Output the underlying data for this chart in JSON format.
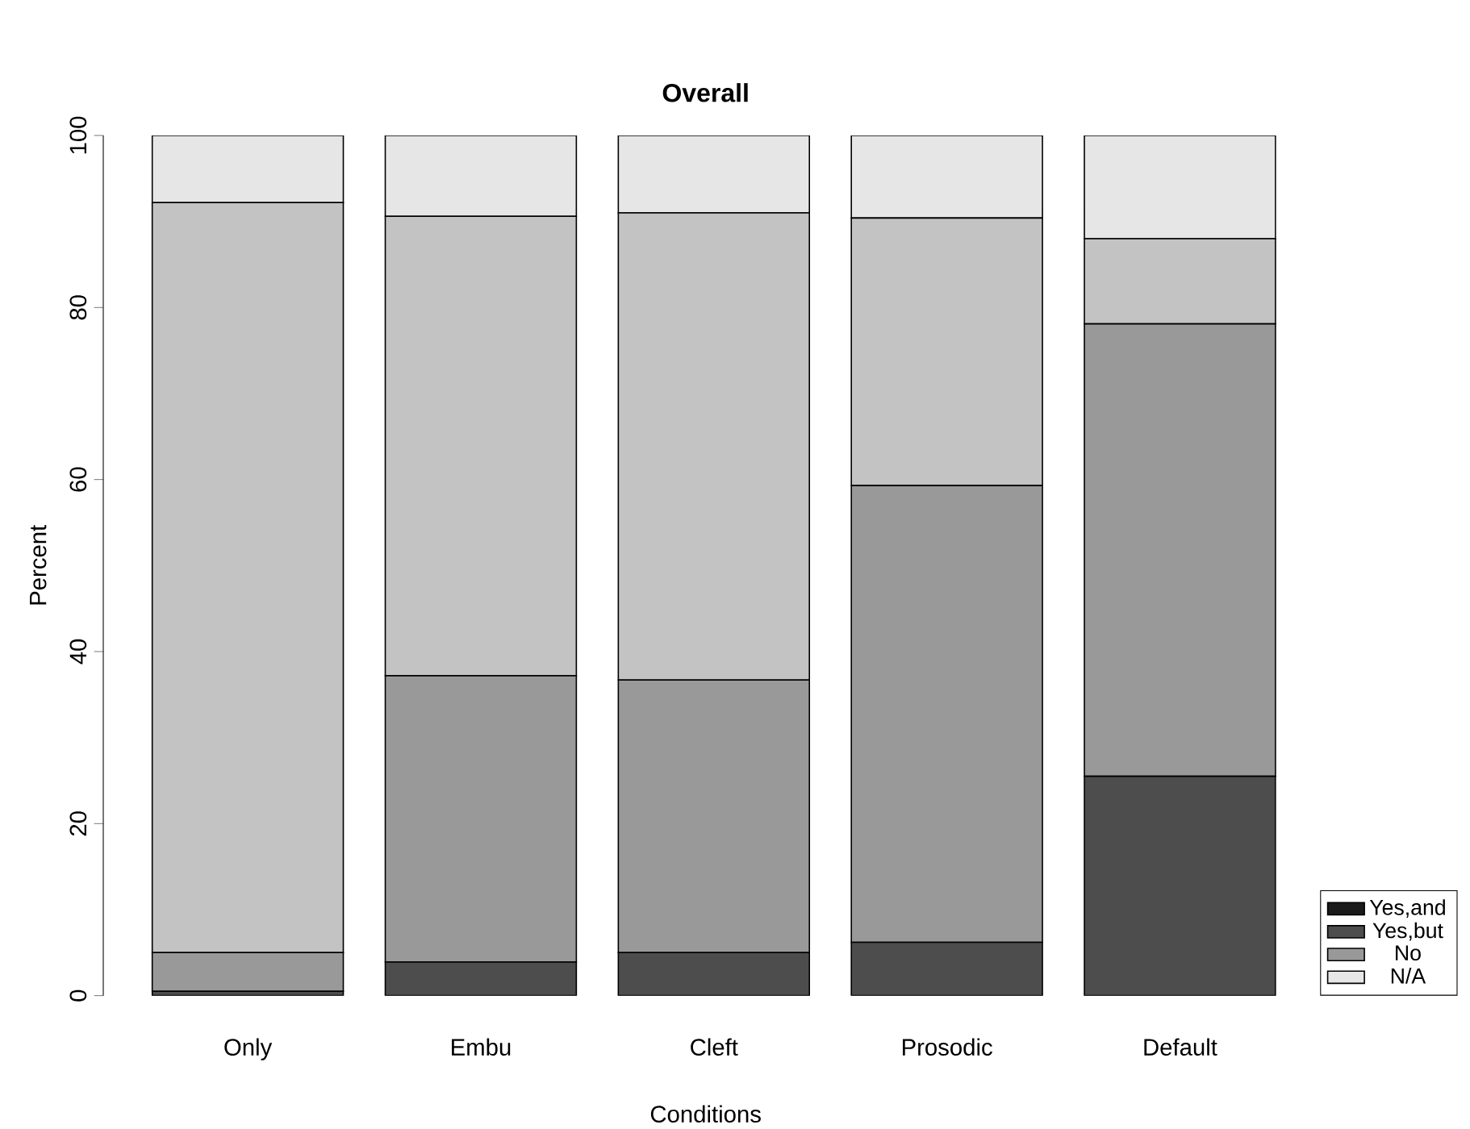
{
  "chart_data": {
    "type": "bar",
    "stacked": true,
    "title": "Overall",
    "xlabel": "Conditions",
    "ylabel": "Percent",
    "categories": [
      "Only",
      "Embu",
      "Cleft",
      "Prosodic",
      "Default"
    ],
    "series": [
      {
        "name": "Yes,and",
        "color": "#1a1a1a",
        "values": [
          0,
          0,
          0,
          0,
          0
        ]
      },
      {
        "name": "Yes,but",
        "color": "#4d4d4d",
        "values": [
          0.5,
          3.9,
          5.0,
          6.2,
          25.5
        ]
      },
      {
        "name": "No",
        "color": "#999999",
        "values": [
          4.5,
          33.3,
          31.7,
          53.1,
          52.6
        ]
      },
      {
        "color": "#c3c3c3",
        "values": [
          87.2,
          53.4,
          54.3,
          31.1,
          9.9
        ]
      },
      {
        "name": "N/A",
        "color": "#e6e6e6",
        "values": [
          7.8,
          9.4,
          9.0,
          9.6,
          12.0
        ]
      }
    ],
    "ylim": [
      0,
      100
    ],
    "yticks": [
      0,
      20,
      40,
      60,
      80,
      100
    ],
    "legend": "bottom right",
    "grid": false
  }
}
